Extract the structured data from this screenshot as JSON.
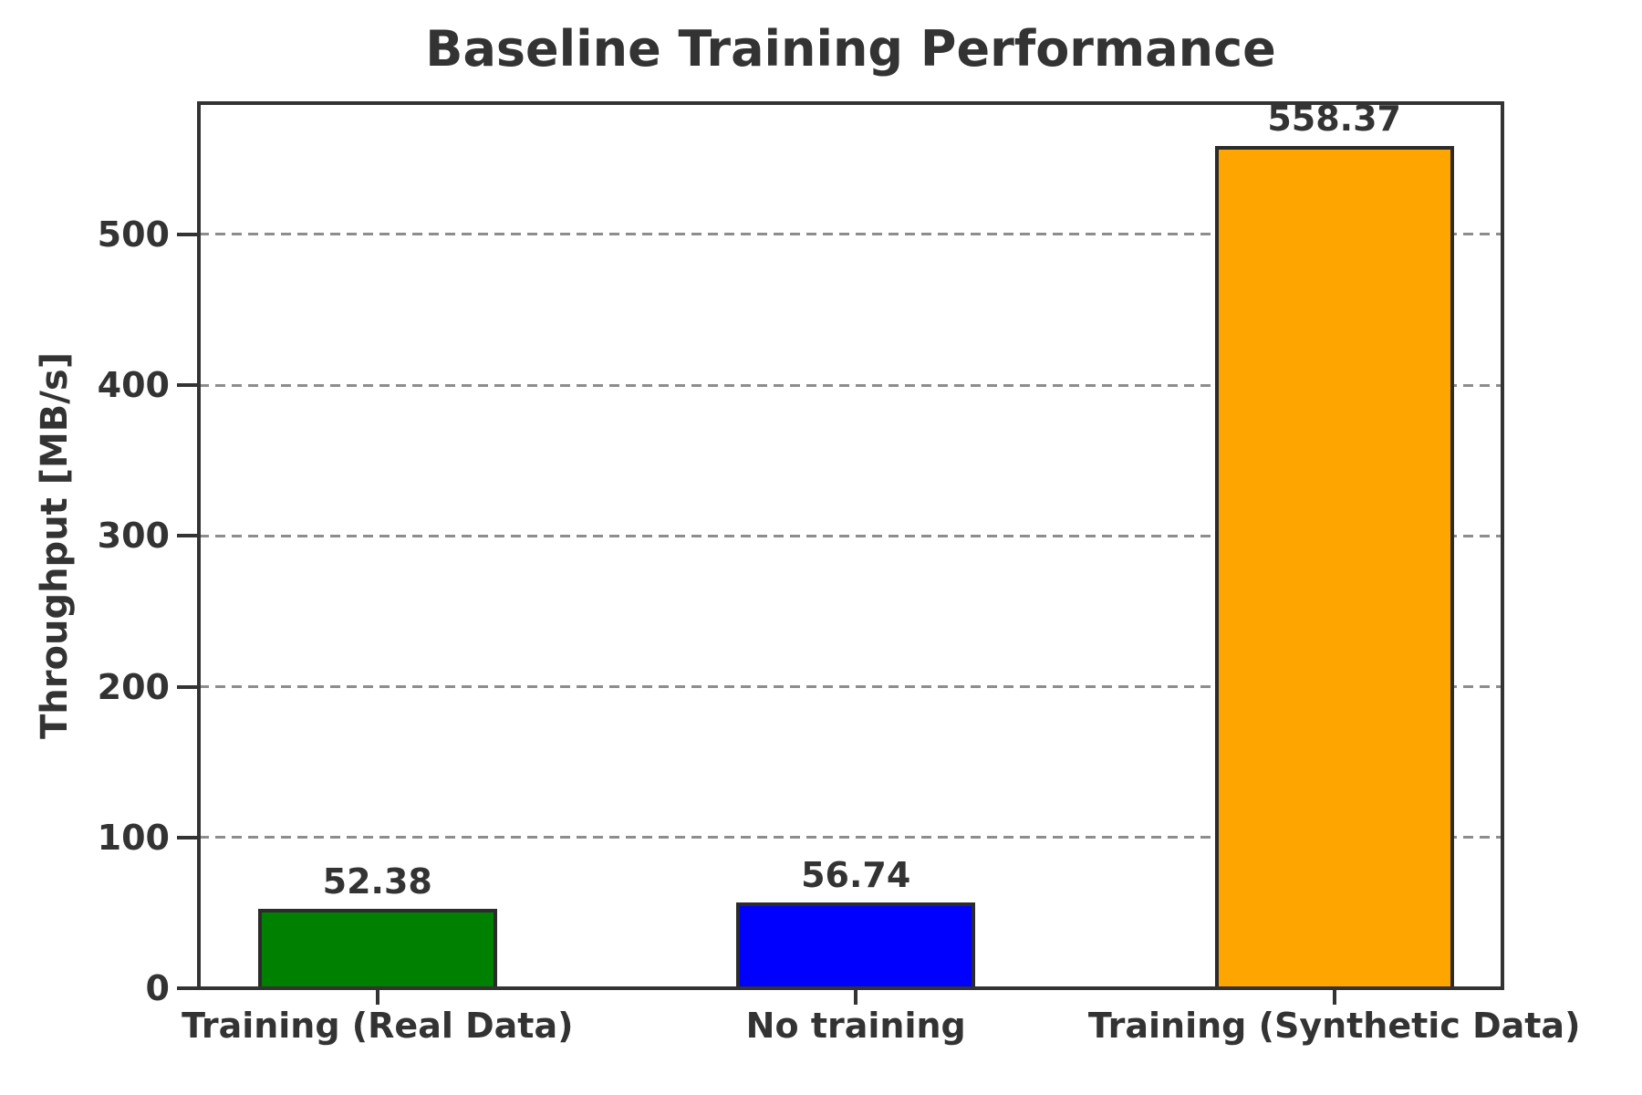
{
  "chart_data": {
    "type": "bar",
    "title": "Baseline Training Performance",
    "xlabel": "",
    "ylabel": "Throughput [MB/s]",
    "categories": [
      "Training (Real Data)",
      "No training",
      "Training (Synthetic Data)"
    ],
    "values": [
      52.38,
      56.74,
      558.37
    ],
    "value_labels": [
      "52.38",
      "56.74",
      "558.37"
    ],
    "bar_colors": [
      "#008000",
      "#0000ff",
      "#ffa500"
    ],
    "bar_edge_color": "#2b2b2b",
    "ylim": [
      0,
      587
    ],
    "yticks": [
      0,
      100,
      200,
      300,
      400,
      500
    ],
    "ytick_labels": [
      "0",
      "100",
      "200",
      "300",
      "400",
      "500"
    ],
    "grid": true,
    "grid_style": "dashed",
    "grid_color": "#8d8d8d",
    "legend": "none",
    "text_color": "#333333",
    "background_color": "#ffffff"
  }
}
